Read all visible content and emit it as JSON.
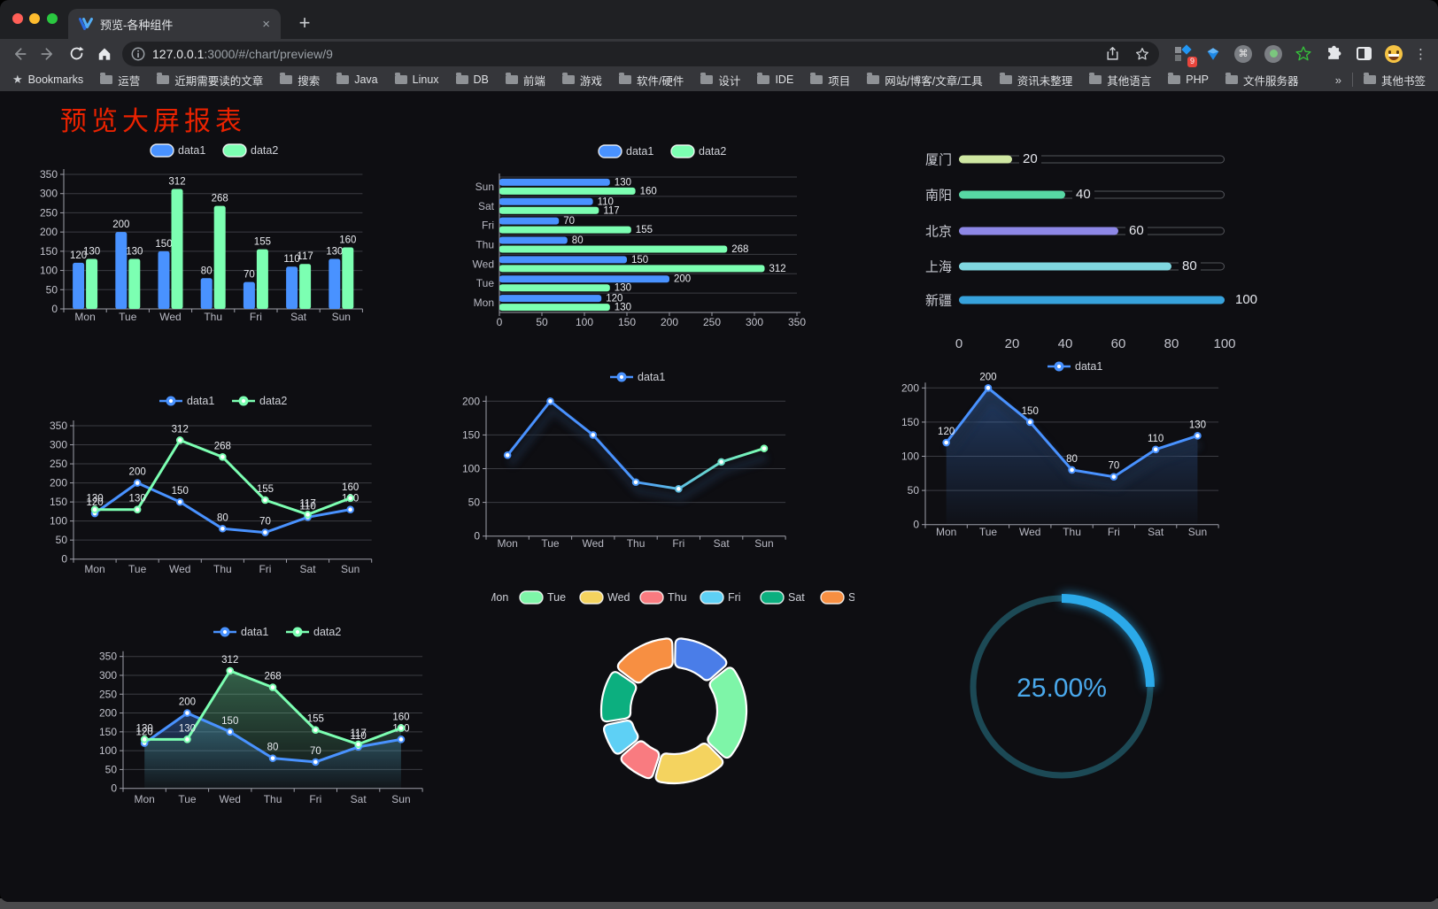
{
  "browser": {
    "traffic_lights": {
      "close": "#ff5f57",
      "minimize": "#febc2e",
      "zoom": "#2ac840"
    },
    "tab": {
      "title": "预览-各种组件",
      "close_glyph": "×",
      "new_tab_glyph": "+"
    },
    "toolbar": {
      "url_host": "127.0.0.1",
      "url_rest": ":3000/#/chart/preview/9",
      "extension_badge": "9",
      "command_glyph": "⌘",
      "menu_glyph": "⋮"
    },
    "bookmarks_label": "Bookmarks",
    "bookmarks": [
      "运营",
      "近期需要读的文章",
      "搜索",
      "Java",
      "Linux",
      "DB",
      "前端",
      "游戏",
      "软件/硬件",
      "设计",
      "IDE",
      "项目",
      "网站/博客/文章/工具",
      "资讯未整理",
      "其他语言",
      "PHP",
      "文件服务器"
    ],
    "bookmarks_overflow": "»",
    "other_bookmarks": "其他书签"
  },
  "page": {
    "title": "预览大屏报表",
    "title_color": "#ea2200",
    "bg": "#0e0e12"
  },
  "colors": {
    "blue": "#4992ff",
    "green": "#7cffb2",
    "grid": "#3b3c42",
    "spine": "#9fa0aa",
    "tick_label": "#c2c3cc",
    "category_label": "#b9bac4",
    "data_label": "#e9ebf0",
    "legend_label": "#cfd1d8"
  },
  "chart_data": [
    {
      "id": "grouped-bar",
      "type": "bar",
      "legend_position": "top",
      "grid": true,
      "categories": [
        "Mon",
        "Tue",
        "Wed",
        "Thu",
        "Fri",
        "Sat",
        "Sun"
      ],
      "series": [
        {
          "name": "data1",
          "color": "#4992ff",
          "values": [
            120,
            200,
            150,
            80,
            70,
            110,
            130
          ]
        },
        {
          "name": "data2",
          "color": "#7cffb2",
          "values": [
            130,
            130,
            312,
            268,
            155,
            117,
            160
          ]
        }
      ],
      "ylim": [
        0,
        350
      ],
      "ytick": 50
    },
    {
      "id": "grouped-bar-horizontal",
      "type": "bar",
      "orientation": "horizontal",
      "legend_position": "top",
      "categories": [
        "Mon",
        "Tue",
        "Wed",
        "Thu",
        "Fri",
        "Sat",
        "Sun"
      ],
      "series": [
        {
          "name": "data1",
          "color": "#4992ff",
          "values": [
            120,
            200,
            150,
            80,
            70,
            110,
            130
          ]
        },
        {
          "name": "data2",
          "color": "#7cffb2",
          "values": [
            130,
            130,
            312,
            268,
            155,
            117,
            160
          ]
        }
      ],
      "xlim": [
        0,
        350
      ],
      "xtick": 50
    },
    {
      "id": "city-progress",
      "type": "bar",
      "subtype": "progress",
      "items": [
        {
          "label": "厦门",
          "value": 20,
          "color": "#cfe7a2"
        },
        {
          "label": "南阳",
          "value": 40,
          "color": "#57d8a4"
        },
        {
          "label": "北京",
          "value": 60,
          "color": "#8d87e6"
        },
        {
          "label": "上海",
          "value": 80,
          "color": "#80d7e0"
        },
        {
          "label": "新疆",
          "value": 100,
          "color": "#37a2dc"
        }
      ],
      "xlim": [
        0,
        100
      ],
      "xticks": [
        0,
        20,
        40,
        60,
        80,
        100
      ]
    },
    {
      "id": "dual-line",
      "type": "line",
      "legend_position": "top",
      "categories": [
        "Mon",
        "Tue",
        "Wed",
        "Thu",
        "Fri",
        "Sat",
        "Sun"
      ],
      "series": [
        {
          "name": "data1",
          "color": "#4992ff",
          "values": [
            120,
            200,
            150,
            80,
            70,
            110,
            130
          ],
          "labels": true
        },
        {
          "name": "data2",
          "color": "#7cffb2",
          "values": [
            130,
            130,
            312,
            268,
            155,
            117,
            160
          ],
          "labels": true
        }
      ],
      "ylim": [
        0,
        350
      ],
      "ytick": 50
    },
    {
      "id": "gradient-line",
      "type": "line",
      "legend_position": "top",
      "categories": [
        "Mon",
        "Tue",
        "Wed",
        "Thu",
        "Fri",
        "Sat",
        "Sun"
      ],
      "series": [
        {
          "name": "data1",
          "color": "#4992ff",
          "color_gradient": [
            "#4992ff",
            "#7cffb2"
          ],
          "values": [
            120,
            200,
            150,
            80,
            70,
            110,
            130
          ],
          "labels": false
        }
      ],
      "ylim": [
        0,
        200
      ],
      "ytick": 50
    },
    {
      "id": "area-line",
      "type": "area",
      "legend_position": "top",
      "categories": [
        "Mon",
        "Tue",
        "Wed",
        "Thu",
        "Fri",
        "Sat",
        "Sun"
      ],
      "series": [
        {
          "name": "data1",
          "color": "#4992ff",
          "values": [
            120,
            200,
            150,
            80,
            70,
            110,
            130
          ],
          "area": true,
          "labels": true
        }
      ],
      "ylim": [
        0,
        200
      ],
      "ytick": 50
    },
    {
      "id": "dual-area-line",
      "type": "area",
      "legend_position": "top",
      "categories": [
        "Mon",
        "Tue",
        "Wed",
        "Thu",
        "Fri",
        "Sat",
        "Sun"
      ],
      "series": [
        {
          "name": "data1",
          "color": "#4992ff",
          "values": [
            120,
            200,
            150,
            80,
            70,
            110,
            130
          ],
          "area": true,
          "labels": true
        },
        {
          "name": "data2",
          "color": "#7cffb2",
          "values": [
            130,
            130,
            312,
            268,
            155,
            117,
            160
          ],
          "area": true,
          "labels": true
        }
      ],
      "ylim": [
        0,
        350
      ],
      "ytick": 50
    },
    {
      "id": "week-donut",
      "type": "pie",
      "legend_position": "top",
      "inner_radius": 49,
      "outer_radius": 82,
      "items": [
        {
          "label": "Mon",
          "value": 120,
          "color": "#4a7de8"
        },
        {
          "label": "Tue",
          "value": 200,
          "color": "#7ef5a8"
        },
        {
          "label": "Wed",
          "value": 150,
          "color": "#f4d35f"
        },
        {
          "label": "Thu",
          "value": 80,
          "color": "#f97b80"
        },
        {
          "label": "Fri",
          "value": 70,
          "color": "#5ed0f5"
        },
        {
          "label": "Sat",
          "value": 110,
          "color": "#0caf7f"
        },
        {
          "label": "Sun",
          "value": 130,
          "color": "#f78f42"
        }
      ]
    },
    {
      "id": "percent-gauge",
      "type": "gauge",
      "value": 25,
      "label": "25.00%",
      "color": "#2ba9e9",
      "track_color": "#1c4955",
      "text_color": "#4aa9ec"
    }
  ]
}
